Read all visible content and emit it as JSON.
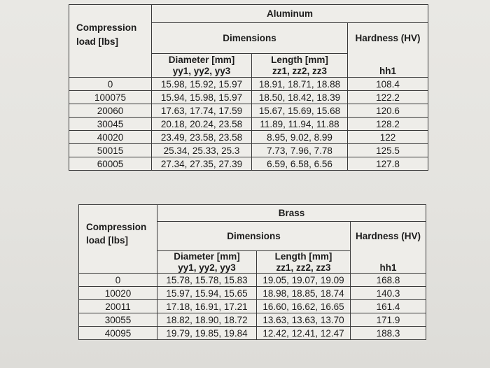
{
  "aluminum": {
    "material": "Aluminum",
    "col_load": "Compression load [lbs]",
    "col_dimensions": "Dimensions",
    "col_hardness": "Hardness (HV)",
    "col_diameter": "Diameter [mm]",
    "col_diameter_sub": "yy1, yy2, yy3",
    "col_length": "Length [mm]",
    "col_length_sub": "zz1, zz2, zz3",
    "col_hardness_sub": "hh1",
    "rows": [
      {
        "load": "0",
        "diameter": "15.98, 15.92, 15.97",
        "length": "18.91, 18.71, 18.88",
        "hardness": "108.4"
      },
      {
        "load": "100075",
        "diameter": "15.94, 15.98, 15.97",
        "length": "18.50, 18.42, 18.39",
        "hardness": "122.2"
      },
      {
        "load": "20060",
        "diameter": "17.63, 17.74, 17.59",
        "length": "15.67, 15.69, 15.68",
        "hardness": "120.6"
      },
      {
        "load": "30045",
        "diameter": "20.18, 20.24, 23.58",
        "length": "11.89, 11.94, 11.88",
        "hardness": "128.2"
      },
      {
        "load": "40020",
        "diameter": "23.49, 23.58, 23.58",
        "length": "8.95, 9.02, 8.99",
        "hardness": "122"
      },
      {
        "load": "50015",
        "diameter": "25.34, 25.33, 25.3",
        "length": "7.73, 7.96, 7.78",
        "hardness": "125.5"
      },
      {
        "load": "60005",
        "diameter": "27.34, 27.35, 27.39",
        "length": "6.59, 6.58, 6.56",
        "hardness": "127.8"
      }
    ]
  },
  "brass": {
    "material": "Brass",
    "col_load": "Compression load [lbs]",
    "col_dimensions": "Dimensions",
    "col_hardness": "Hardness (HV)",
    "col_diameter": "Diameter [mm]",
    "col_diameter_sub": "yy1, yy2, yy3",
    "col_length": "Length [mm]",
    "col_length_sub": "zz1, zz2, zz3",
    "col_hardness_sub": "hh1",
    "rows": [
      {
        "load": "0",
        "diameter": "15.78, 15.78, 15.83",
        "length": "19.05, 19.07, 19.09",
        "hardness": "168.8"
      },
      {
        "load": "10020",
        "diameter": "15.97, 15.94, 15.65",
        "length": "18.98, 18.85, 18.74",
        "hardness": "140.3"
      },
      {
        "load": "20011",
        "diameter": "17.18, 16.91, 17.21",
        "length": "16.60, 16.62, 16.65",
        "hardness": "161.4"
      },
      {
        "load": "30055",
        "diameter": "18.82, 18.90, 18.72",
        "length": "13.63, 13.63, 13.70",
        "hardness": "171.9"
      },
      {
        "load": "40095",
        "diameter": "19.79, 19.85, 19.84",
        "length": "12.42, 12.41, 12.47",
        "hardness": "188.3"
      }
    ]
  }
}
